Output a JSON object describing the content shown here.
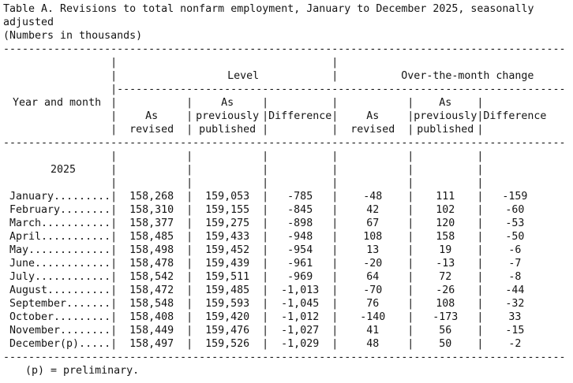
{
  "document": {
    "title_line1": "Table A. Revisions to total nonfarm employment, January to December 2025, seasonally",
    "title_line2": "adjusted",
    "subtitle": "(Numbers in thousands)",
    "footnote": "(p) = preliminary."
  },
  "decor": {
    "pipe": "|",
    "hrule": "-----------------------------------------------------------------------------------------",
    "subrule": "-----------------------------------------------------------------------"
  },
  "table": {
    "row_header": "Year and month",
    "year_label": "2025",
    "groups": [
      {
        "label": "Level"
      },
      {
        "label": "Over-the-month change"
      }
    ],
    "columns": [
      {
        "group": "Level",
        "header_lines": [
          "",
          "As",
          "revised"
        ]
      },
      {
        "group": "Level",
        "header_lines": [
          "As",
          "previously",
          "published"
        ]
      },
      {
        "group": "Level",
        "header_lines": [
          "",
          "Difference",
          ""
        ]
      },
      {
        "group": "Over-the-month change",
        "header_lines": [
          "",
          "As",
          "revised"
        ]
      },
      {
        "group": "Over-the-month change",
        "header_lines": [
          "As",
          "previously",
          "published"
        ]
      },
      {
        "group": "Over-the-month change",
        "header_lines": [
          "",
          "Difference",
          ""
        ]
      }
    ],
    "rows": [
      {
        "label": "January.........",
        "values": [
          "158,268",
          "159,053",
          "-785",
          "-48",
          "111",
          "-159"
        ]
      },
      {
        "label": "February........",
        "values": [
          "158,310",
          "159,155",
          "-845",
          "42",
          "102",
          "-60"
        ]
      },
      {
        "label": "March...........",
        "values": [
          "158,377",
          "159,275",
          "-898",
          "67",
          "120",
          "-53"
        ]
      },
      {
        "label": "April...........",
        "values": [
          "158,485",
          "159,433",
          "-948",
          "108",
          "158",
          "-50"
        ]
      },
      {
        "label": "May.............",
        "values": [
          "158,498",
          "159,452",
          "-954",
          "13",
          "19",
          "-6"
        ]
      },
      {
        "label": "June............",
        "values": [
          "158,478",
          "159,439",
          "-961",
          "-20",
          "-13",
          "-7"
        ]
      },
      {
        "label": "July............",
        "values": [
          "158,542",
          "159,511",
          "-969",
          "64",
          "72",
          "-8"
        ]
      },
      {
        "label": "August..........",
        "values": [
          "158,472",
          "159,485",
          "-1,013",
          "-70",
          "-26",
          "-44"
        ]
      },
      {
        "label": "September.......",
        "values": [
          "158,548",
          "159,593",
          "-1,045",
          "76",
          "108",
          "-32"
        ]
      },
      {
        "label": "October.........",
        "values": [
          "158,408",
          "159,420",
          "-1,012",
          "-140",
          "-173",
          "33"
        ]
      },
      {
        "label": "November........",
        "values": [
          "158,449",
          "159,476",
          "-1,027",
          "41",
          "56",
          "-15"
        ]
      },
      {
        "label": "December(p).....",
        "values": [
          "158,497",
          "159,526",
          "-1,029",
          "48",
          "50",
          "-2"
        ]
      }
    ]
  }
}
